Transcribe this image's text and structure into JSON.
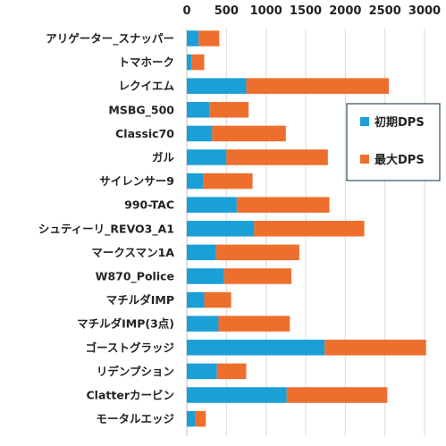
{
  "chart_data": {
    "type": "bar",
    "orientation": "horizontal",
    "stacked": true,
    "categories": [
      "アリゲーター_スナッパー",
      "トマホーク",
      "レクイエム",
      "MSBG_500",
      "Classic70",
      "ガル",
      "サイレンサー9",
      "990-TAC",
      "シュティーリ_REVO3_A1",
      "マークスマン1A",
      "W870_Police",
      "マチルダIMP",
      "マチルダIMP(3点)",
      "ゴーストグラッジ",
      "リデンプション",
      "Clatterカービン",
      "モータルエッジ"
    ],
    "series": [
      {
        "name": "初期DPS",
        "color": "#1a9fd6",
        "values": [
          150,
          60,
          750,
          290,
          320,
          500,
          210,
          630,
          850,
          370,
          470,
          220,
          400,
          1740,
          380,
          1260,
          110
        ]
      },
      {
        "name": "最大DPS",
        "color": "#ee6f2d",
        "values": [
          260,
          160,
          1800,
          490,
          930,
          1280,
          620,
          1170,
          1390,
          1050,
          850,
          340,
          900,
          1280,
          370,
          1270,
          130
        ]
      }
    ],
    "xlim": [
      0,
      3000
    ],
    "xticks": [
      0,
      500,
      1000,
      1500,
      2000,
      2500,
      3000
    ],
    "xtick_labels": [
      "0",
      "500",
      "1000",
      "1500",
      "2000",
      "2500",
      "3000"
    ],
    "xaxis_position": "top",
    "grid": true,
    "legend_position": "right"
  }
}
